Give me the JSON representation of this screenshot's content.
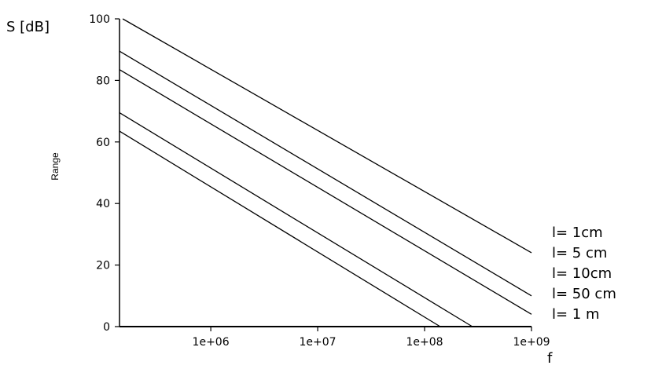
{
  "chart_data": {
    "type": "line",
    "title": "",
    "corner_ylabel": "S [dB]",
    "ylabel": "Range",
    "xlabel": "f",
    "x_scale": "log",
    "xlim": [
      140000,
      1000000000
    ],
    "ylim": [
      0,
      100
    ],
    "x_ticks": [
      1000000,
      10000000,
      100000000,
      1000000000
    ],
    "x_tick_labels": [
      "1e+06",
      "1e+07",
      "1e+08",
      "1e+09"
    ],
    "y_ticks": [
      0,
      20,
      40,
      60,
      80,
      100
    ],
    "y_tick_labels": [
      "0",
      "20",
      "40",
      "60",
      "80",
      "100"
    ],
    "grid": false,
    "legend_position": "right",
    "series": [
      {
        "name": "l= 1cm",
        "x": [
          150000,
          1000000000
        ],
        "y": [
          100,
          24
        ]
      },
      {
        "name": "l= 5 cm",
        "x": [
          140000,
          1000000000
        ],
        "y": [
          89.5,
          10
        ]
      },
      {
        "name": "l= 10cm",
        "x": [
          140000,
          1000000000
        ],
        "y": [
          83.5,
          4
        ]
      },
      {
        "name": "l= 50 cm",
        "x": [
          140000,
          280000000
        ],
        "y": [
          69.5,
          0
        ]
      },
      {
        "name": "l= 1 m",
        "x": [
          140000,
          140000000
        ],
        "y": [
          63.5,
          0
        ]
      }
    ]
  }
}
